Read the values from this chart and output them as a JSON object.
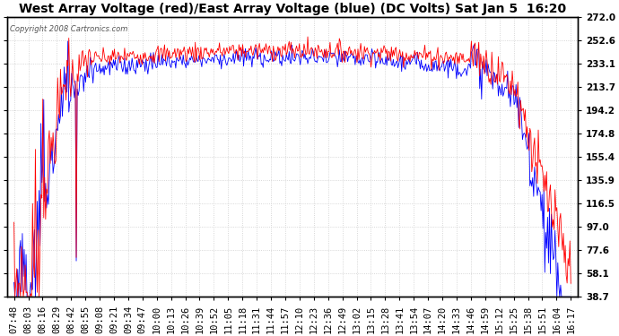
{
  "title": "West Array Voltage (red)/East Array Voltage (blue) (DC Volts) Sat Jan 5  16:20",
  "copyright": "Copyright 2008 Cartronics.com",
  "ylabel_right_values": [
    272.0,
    252.6,
    233.1,
    213.7,
    194.2,
    174.8,
    155.4,
    135.9,
    116.5,
    97.0,
    77.6,
    58.1,
    38.7
  ],
  "ylim": [
    38.7,
    272.0
  ],
  "color_west": "#ff0000",
  "color_east": "#0000ff",
  "bg_color": "#ffffff",
  "grid_color": "#cccccc",
  "title_fontsize": 10,
  "tick_label_fontsize": 7.5,
  "x_tick_labels": [
    "07:48",
    "08:03",
    "08:16",
    "08:29",
    "08:42",
    "08:55",
    "09:08",
    "09:21",
    "09:34",
    "09:47",
    "10:00",
    "10:13",
    "10:26",
    "10:39",
    "10:52",
    "11:05",
    "11:18",
    "11:31",
    "11:44",
    "11:57",
    "12:10",
    "12:23",
    "12:36",
    "12:49",
    "13:02",
    "13:15",
    "13:28",
    "13:41",
    "13:54",
    "14:07",
    "14:20",
    "14:33",
    "14:46",
    "14:59",
    "15:12",
    "15:25",
    "15:38",
    "15:51",
    "16:04",
    "16:17"
  ]
}
